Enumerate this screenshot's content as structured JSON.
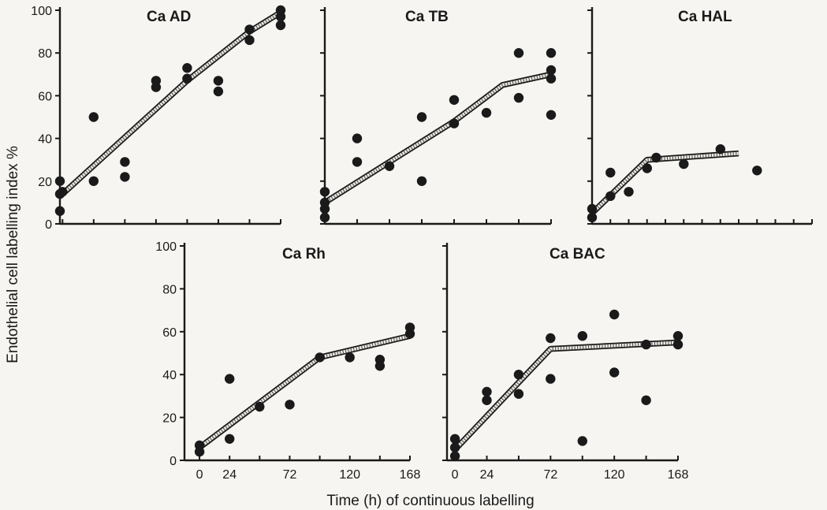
{
  "figure": {
    "ylabel": "Endothelial cell labelling index %",
    "xlabel": "Time (h) of continuous labelling"
  },
  "chart_data": [
    {
      "type": "scatter",
      "id": "ca-ad",
      "title": "Ca AD",
      "ylim": [
        0,
        100
      ],
      "yticks": [
        0,
        20,
        40,
        60,
        80,
        100
      ],
      "ytick_labels": [
        "0",
        "20",
        "40",
        "60",
        "80",
        "100"
      ],
      "xlim": [
        -2,
        168
      ],
      "xticks": [
        0,
        24,
        48,
        72,
        96,
        120,
        144,
        168
      ],
      "xtick_labels": [],
      "points": [
        [
          -2,
          20
        ],
        [
          -2,
          6
        ],
        [
          -2,
          14
        ],
        [
          0,
          15
        ],
        [
          24,
          20
        ],
        [
          24,
          50
        ],
        [
          48,
          29
        ],
        [
          48,
          22
        ],
        [
          72,
          67
        ],
        [
          72,
          64
        ],
        [
          96,
          73
        ],
        [
          96,
          68
        ],
        [
          120,
          67
        ],
        [
          120,
          62
        ],
        [
          144,
          91
        ],
        [
          144,
          86
        ],
        [
          168,
          100
        ],
        [
          168,
          97
        ],
        [
          168,
          93
        ]
      ],
      "fit": [
        [
          -2,
          13
        ],
        [
          0,
          14
        ],
        [
          96,
          67
        ],
        [
          144,
          90
        ],
        [
          168,
          99
        ]
      ]
    },
    {
      "type": "scatter",
      "id": "ca-tb",
      "title": "Ca TB",
      "ylim": [
        0,
        100
      ],
      "yticks": [
        0,
        20,
        40,
        60,
        80,
        100
      ],
      "ytick_labels": [],
      "xlim": [
        0,
        168
      ],
      "xticks": [
        0,
        24,
        48,
        72,
        96,
        120,
        144,
        168
      ],
      "xtick_labels": [],
      "points": [
        [
          0,
          15
        ],
        [
          0,
          10
        ],
        [
          0,
          7
        ],
        [
          0,
          3
        ],
        [
          24,
          40
        ],
        [
          24,
          29
        ],
        [
          48,
          27
        ],
        [
          72,
          50
        ],
        [
          72,
          20
        ],
        [
          96,
          58
        ],
        [
          96,
          47
        ],
        [
          120,
          52
        ],
        [
          144,
          80
        ],
        [
          144,
          59
        ],
        [
          168,
          80
        ],
        [
          168,
          72
        ],
        [
          168,
          68
        ],
        [
          168,
          51
        ]
      ],
      "fit": [
        [
          0,
          10
        ],
        [
          96,
          48
        ],
        [
          132,
          65
        ],
        [
          168,
          70
        ]
      ]
    },
    {
      "type": "scatter",
      "id": "ca-hal",
      "title": "Ca HAL",
      "ylim": [
        0,
        100
      ],
      "yticks": [
        0,
        20,
        40,
        60,
        80,
        100
      ],
      "ytick_labels": [],
      "xlim": [
        0,
        144
      ],
      "xticks": [
        0,
        12,
        24,
        36,
        48,
        60,
        72,
        84,
        96,
        108,
        120,
        132,
        144
      ],
      "xtick_labels": [],
      "points": [
        [
          0,
          7
        ],
        [
          0,
          3
        ],
        [
          12,
          13
        ],
        [
          12,
          24
        ],
        [
          24,
          15
        ],
        [
          36,
          26
        ],
        [
          42,
          31
        ],
        [
          60,
          28
        ],
        [
          84,
          35
        ],
        [
          108,
          25
        ]
      ],
      "fit": [
        [
          0,
          5
        ],
        [
          36,
          30
        ],
        [
          96,
          33
        ]
      ]
    },
    {
      "type": "scatter",
      "id": "ca-rh",
      "title": "Ca Rh",
      "ylim": [
        0,
        100
      ],
      "yticks": [
        0,
        20,
        40,
        60,
        80,
        100
      ],
      "ytick_labels": [
        "0",
        "20",
        "40",
        "60",
        "80",
        "100"
      ],
      "xlim": [
        -12,
        168
      ],
      "xticks": [
        0,
        24,
        72,
        120,
        168
      ],
      "xtick_labels": [
        "0",
        "24",
        "72",
        "120",
        "168"
      ],
      "xminor_ticks": [
        0,
        24,
        48,
        72,
        96,
        120,
        144,
        168
      ],
      "points": [
        [
          0,
          7
        ],
        [
          0,
          4
        ],
        [
          24,
          38
        ],
        [
          24,
          10
        ],
        [
          48,
          25
        ],
        [
          72,
          26
        ],
        [
          96,
          48
        ],
        [
          120,
          48
        ],
        [
          144,
          47
        ],
        [
          144,
          44
        ],
        [
          168,
          62
        ],
        [
          168,
          59
        ]
      ],
      "fit": [
        [
          0,
          6
        ],
        [
          96,
          48
        ],
        [
          168,
          58
        ]
      ]
    },
    {
      "type": "scatter",
      "id": "ca-bac",
      "title": "Ca BAC",
      "ylim": [
        0,
        100
      ],
      "yticks": [
        0,
        20,
        40,
        60,
        80,
        100
      ],
      "ytick_labels": [],
      "xlim": [
        -6,
        168
      ],
      "xticks": [
        0,
        24,
        72,
        120,
        168
      ],
      "xtick_labels": [
        "0",
        "24",
        "72",
        "120",
        "168"
      ],
      "xminor_ticks": [
        0,
        24,
        48,
        72,
        96,
        120,
        144,
        168
      ],
      "points": [
        [
          0,
          10
        ],
        [
          0,
          6
        ],
        [
          0,
          2
        ],
        [
          24,
          32
        ],
        [
          24,
          28
        ],
        [
          48,
          40
        ],
        [
          48,
          31
        ],
        [
          72,
          57
        ],
        [
          72,
          38
        ],
        [
          96,
          58
        ],
        [
          96,
          9
        ],
        [
          120,
          68
        ],
        [
          120,
          41
        ],
        [
          144,
          54
        ],
        [
          144,
          28
        ],
        [
          168,
          58
        ],
        [
          168,
          54
        ]
      ],
      "fit": [
        [
          0,
          5
        ],
        [
          72,
          52
        ],
        [
          168,
          55
        ]
      ]
    }
  ]
}
